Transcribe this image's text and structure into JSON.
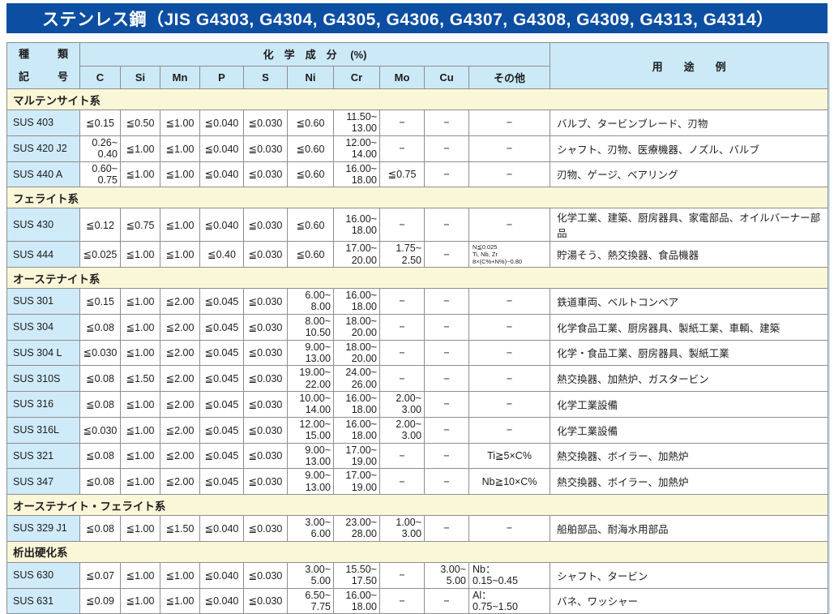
{
  "title": "ステンレス鋼（JIS G4303, G4304, G4305, G4306, G4307, G4308, G4309, G4313, G4314）",
  "colors": {
    "title_bar": "#0b4ea2",
    "header_bg": "#cce9f7",
    "code_cell_bg": "#cfeaf8",
    "section_bg": "#faf6d8",
    "border": "#8e8e8e"
  },
  "table": {
    "header": {
      "kind_top": "種　類",
      "kind_bottom": "記　号",
      "chem_group": "化　学　成　分　 (%)",
      "elements": [
        "C",
        "Si",
        "Mn",
        "P",
        "S",
        "Ni",
        "Cr",
        "Mo",
        "Cu",
        "その他"
      ],
      "usage": "用　　途　　例"
    },
    "sections": [
      {
        "name": "マルテンサイト系",
        "rows": [
          {
            "code": "SUS 403",
            "cells": [
              "≦0.15",
              "≦0.50",
              "≦1.00",
              "≦0.040",
              "≦0.030",
              "≦0.60",
              "11.50~\n13.00",
              "−",
              "−",
              "−"
            ],
            "use": "バルブ、タービンブレード、刃物"
          },
          {
            "code": "SUS 420 J2",
            "cells": [
              "0.26~\n0.40",
              "≦1.00",
              "≦1.00",
              "≦0.040",
              "≦0.030",
              "≦0.60",
              "12.00~\n14.00",
              "−",
              "−",
              "−"
            ],
            "use": "シャフト、刃物、医療機器、ノズル、バルブ"
          },
          {
            "code": "SUS 440 A",
            "cells": [
              "0.60~\n0.75",
              "≦1.00",
              "≦1.00",
              "≦0.040",
              "≦0.030",
              "≦0.60",
              "16.00~\n18.00",
              "≦0.75",
              "−",
              "−"
            ],
            "use": "刃物、ゲージ、ベアリング"
          }
        ]
      },
      {
        "name": "フェライト系",
        "rows": [
          {
            "code": "SUS 430",
            "cells": [
              "≦0.12",
              "≦0.75",
              "≦1.00",
              "≦0.040",
              "≦0.030",
              "≦0.60",
              "16.00~\n18.00",
              "−",
              "−",
              "−"
            ],
            "use": "化学工業、建築、厨房器具、家電部品、オイルバーナー部品"
          },
          {
            "code": "SUS 444",
            "cells": [
              "≦0.025",
              "≦1.00",
              "≦1.00",
              "≦0.40",
              "≦0.030",
              "≦0.60",
              "17.00~\n20.00",
              "1.75~\n2.50",
              "−",
              "N≦0.025\nTi, Nb, Zr\n8×(C%+N%)~0.80"
            ],
            "use": "貯湯そう、熱交換器、食品機器"
          }
        ]
      },
      {
        "name": "オーステナイト系",
        "rows": [
          {
            "code": "SUS 301",
            "cells": [
              "≦0.15",
              "≦1.00",
              "≦2.00",
              "≦0.045",
              "≦0.030",
              "6.00~\n8.00",
              "16.00~\n18.00",
              "−",
              "−",
              "−"
            ],
            "use": "鉄道車両、ベルトコンベア"
          },
          {
            "code": "SUS 304",
            "cells": [
              "≦0.08",
              "≦1.00",
              "≦2.00",
              "≦0.045",
              "≦0.030",
              "8.00~\n10.50",
              "18.00~\n20.00",
              "−",
              "−",
              "−"
            ],
            "use": "化学食品工業、厨房器具、製紙工業、車輌、建築"
          },
          {
            "code": "SUS 304 L",
            "cells": [
              "≦0.030",
              "≦1.00",
              "≦2.00",
              "≦0.045",
              "≦0.030",
              "9.00~\n13.00",
              "18.00~\n20.00",
              "−",
              "−",
              "−"
            ],
            "use": "化学・食品工業、厨房器具、製紙工業"
          },
          {
            "code": "SUS 310S",
            "cells": [
              "≦0.08",
              "≦1.50",
              "≦2.00",
              "≦0.045",
              "≦0.030",
              "19.00~\n22.00",
              "24.00~\n26.00",
              "−",
              "−",
              "−"
            ],
            "use": "熱交換器、加熱炉、ガスタービン"
          },
          {
            "code": "SUS 316",
            "cells": [
              "≦0.08",
              "≦1.00",
              "≦2.00",
              "≦0.045",
              "≦0.030",
              "10.00~\n14.00",
              "16.00~\n18.00",
              "2.00~\n3.00",
              "−",
              "−"
            ],
            "use": "化学工業設備"
          },
          {
            "code": "SUS 316L",
            "cells": [
              "≦0.030",
              "≦1.00",
              "≦2.00",
              "≦0.045",
              "≦0.030",
              "12.00~\n15.00",
              "16.00~\n18.00",
              "2.00~\n3.00",
              "−",
              "−"
            ],
            "use": "化学工業設備"
          },
          {
            "code": "SUS 321",
            "cells": [
              "≦0.08",
              "≦1.00",
              "≦2.00",
              "≦0.045",
              "≦0.030",
              "9.00~\n13.00",
              "17.00~\n19.00",
              "−",
              "−",
              "Ti≧5×C%"
            ],
            "use": "熱交換器、ボイラー、加熱炉"
          },
          {
            "code": "SUS 347",
            "cells": [
              "≦0.08",
              "≦1.00",
              "≦2.00",
              "≦0.045",
              "≦0.030",
              "9.00~\n13.00",
              "17.00~\n19.00",
              "−",
              "−",
              "Nb≧10×C%"
            ],
            "use": "熱交換器、ボイラー、加熱炉"
          }
        ]
      },
      {
        "name": "オーステナイト・フェライト系",
        "rows": [
          {
            "code": "SUS 329 J1",
            "cells": [
              "≦0.08",
              "≦1.00",
              "≦1.50",
              "≦0.040",
              "≦0.030",
              "3.00~\n6.00",
              "23.00~\n28.00",
              "1.00~\n3.00",
              "−",
              "−"
            ],
            "use": "船舶部品、耐海水用部品"
          }
        ]
      },
      {
        "name": "析出硬化系",
        "rows": [
          {
            "code": "SUS 630",
            "cells": [
              "≦0.07",
              "≦1.00",
              "≦1.00",
              "≦0.040",
              "≦0.030",
              "3.00~\n5.00",
              "15.50~\n17.50",
              "−",
              "3.00~\n5.00",
              "Nb：\n0.15~0.45"
            ],
            "use": "シャフト、タービン"
          },
          {
            "code": "SUS 631",
            "cells": [
              "≦0.09",
              "≦1.00",
              "≦1.00",
              "≦0.040",
              "≦0.030",
              "6.50~\n7.75",
              "16.00~\n18.00",
              "−",
              "−",
              "Al：\n0.75~1.50"
            ],
            "use": "バネ、ワッシャー"
          }
        ]
      }
    ]
  }
}
